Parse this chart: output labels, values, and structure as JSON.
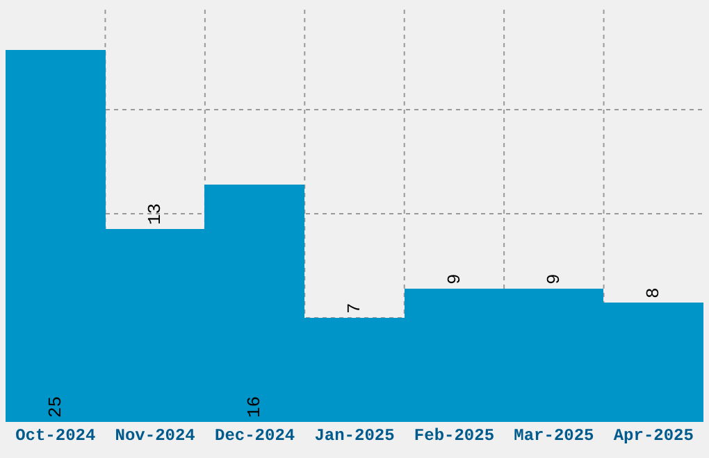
{
  "chart_data": {
    "type": "bar",
    "categories": [
      "Oct-2024",
      "Nov-2024",
      "Dec-2024",
      "Jan-2025",
      "Feb-2025",
      "Mar-2025",
      "Apr-2025"
    ],
    "values": [
      25,
      13,
      16,
      7,
      9,
      9,
      8
    ],
    "color": "#0095c8",
    "data_labels": true,
    "ylim": [
      0,
      28
    ],
    "yticks": [
      {
        "value": 7,
        "label": null
      },
      {
        "value": 14,
        "label": null
      },
      {
        "value": 21,
        "label": null
      }
    ],
    "tick_labels": "x",
    "grid": true
  }
}
